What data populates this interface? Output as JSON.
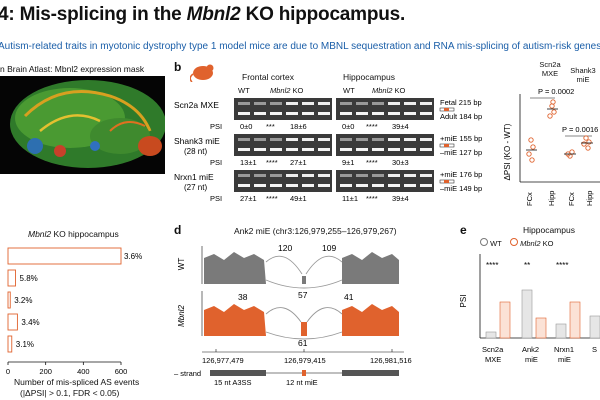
{
  "header": {
    "title_prefix": "4: Mis-splicing in the ",
    "title_gene": "Mbnl2",
    "title_suffix": " KO hippocampus.",
    "subtitle": "Autism-related traits in myotonic dystrophy type 1 model mice are due to MBNL sequestration and RNA mis-splicing of autism-risk genes"
  },
  "panel_a": {
    "atlas_label": "n Brain Atlast: Mbnl2 expression mask"
  },
  "panel_bar": {
    "title_gene": "Mbnl2",
    "title_rest": " KO hippocampus",
    "xlabel": "Number of mis-spliced AS events",
    "xlabel2": "(|ΔPSI| > 0.1, FDR < 0.05)",
    "ticks": [
      "0",
      "200",
      "400",
      "600"
    ]
  },
  "chart_data": {
    "type": "bar",
    "categories": [
      "",
      "",
      "",
      "",
      ""
    ],
    "values": [
      600,
      40,
      12,
      50,
      20
    ],
    "labels": [
      "3.6%",
      "5.8%",
      "3.2%",
      "3.4%",
      "3.1%"
    ],
    "xlim": [
      0,
      600
    ],
    "orientation": "horizontal"
  },
  "panel_b": {
    "letter": "b",
    "col1": "Frontal cortex",
    "col2": "Hippocampus",
    "wt": "WT",
    "ko_gene": "Mbnl2",
    "ko_suffix": " KO",
    "rows": [
      {
        "name": "Scn2a MXE",
        "sub": "",
        "top_band": "Fetal 215 bp",
        "bot_band": "Adult 184 bp",
        "psi": [
          "0±0",
          "***",
          "18±6",
          "0±0",
          "****",
          "39±4"
        ]
      },
      {
        "name": "Shank3 miE",
        "sub": "(28 nt)",
        "top_band": "+miE 155 bp",
        "bot_band": "–miE 127 bp",
        "psi": [
          "13±1",
          "****",
          "27±1",
          "9±1",
          "****",
          "30±3"
        ]
      },
      {
        "name": "Nrxn1 miE",
        "sub": "(27 nt)",
        "top_band": "+miE 176 bp",
        "bot_band": "–miE 149 bp",
        "psi": [
          "27±1",
          "****",
          "49±1",
          "11±1",
          "****",
          "39±4"
        ]
      }
    ],
    "psi_label": "PSI"
  },
  "panel_b_dot": {
    "ylabel": "ΔPSI (KO - WT)",
    "g1": "Scn2a\nMXE",
    "g1a": "Scn2a",
    "g1b": "MXE",
    "g2a": "Shank3",
    "g2b": "miE",
    "p1": "P = 0.0002",
    "p2": "P = 0.0016",
    "xt": [
      "FCx",
      "Hipp",
      "FCx",
      "Hipp"
    ]
  },
  "panel_d": {
    "letter": "d",
    "title": "Ank2 miE (chr3:126,979,255–126,979,267)",
    "wt": "WT",
    "ko_gene": "Mbnl2",
    "ko_suffix": " KO",
    "wt_counts": [
      "120",
      "109",
      "57"
    ],
    "ko_counts": [
      "38",
      "41",
      "61"
    ],
    "coords": [
      "126,977,479",
      "126,979,415",
      "126,981,516"
    ],
    "strand": "– strand",
    "a3ss": "15 nt A3SS",
    "mie": "12 nt miE"
  },
  "panel_e": {
    "letter": "e",
    "title": "Hippocampus",
    "legend_wt": "WT",
    "legend_ko_gene": "Mbnl2",
    "legend_ko_suffix": " KO",
    "ylabel": "PSI",
    "sig": [
      "****",
      "**",
      "****"
    ],
    "xt": [
      [
        "Scn2a",
        "MXE"
      ],
      [
        "Ank2",
        "miE"
      ],
      [
        "Nrxn1",
        "miE"
      ],
      [
        "S",
        ""
      ]
    ]
  },
  "colors": {
    "ko": "#e0622d",
    "wt": "#7a7a7a",
    "link": "#1a5ea8"
  }
}
